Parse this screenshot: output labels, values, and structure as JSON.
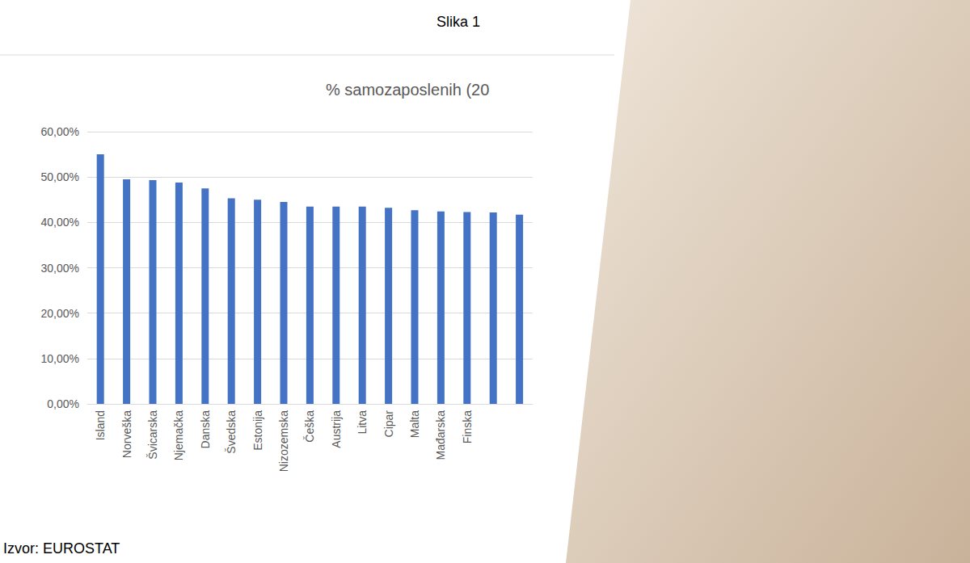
{
  "chart_data": {
    "type": "bar",
    "title": "% samozaposlenih (20",
    "annotations": [
      "Slika 1",
      "Izvor: EUROSTAT"
    ],
    "categories": [
      "Island",
      "Norveška",
      "Švicarska",
      "Njemačka",
      "Danska",
      "Švedska",
      "Estonija",
      "Nizozemska",
      "Češka",
      "Austrija",
      "Litva",
      "Cipar",
      "Malta",
      "Mađarska",
      "Finska",
      null,
      null
    ],
    "values": [
      55.0,
      49.5,
      49.3,
      48.8,
      47.5,
      45.3,
      45.0,
      44.5,
      43.5,
      43.5,
      43.5,
      43.2,
      42.7,
      42.4,
      42.3,
      42.2,
      41.7
    ],
    "color": "#4472c4",
    "ylim": [
      0,
      60
    ],
    "yticks": [
      {
        "value": 0,
        "label": "0,00%"
      },
      {
        "value": 10,
        "label": "10,00%"
      },
      {
        "value": 20,
        "label": "20,00%"
      },
      {
        "value": 30,
        "label": "30,00%"
      },
      {
        "value": 40,
        "label": "40,00%"
      },
      {
        "value": 50,
        "label": "50,00%"
      },
      {
        "value": 60,
        "label": "60,00%"
      }
    ],
    "grid": true
  }
}
